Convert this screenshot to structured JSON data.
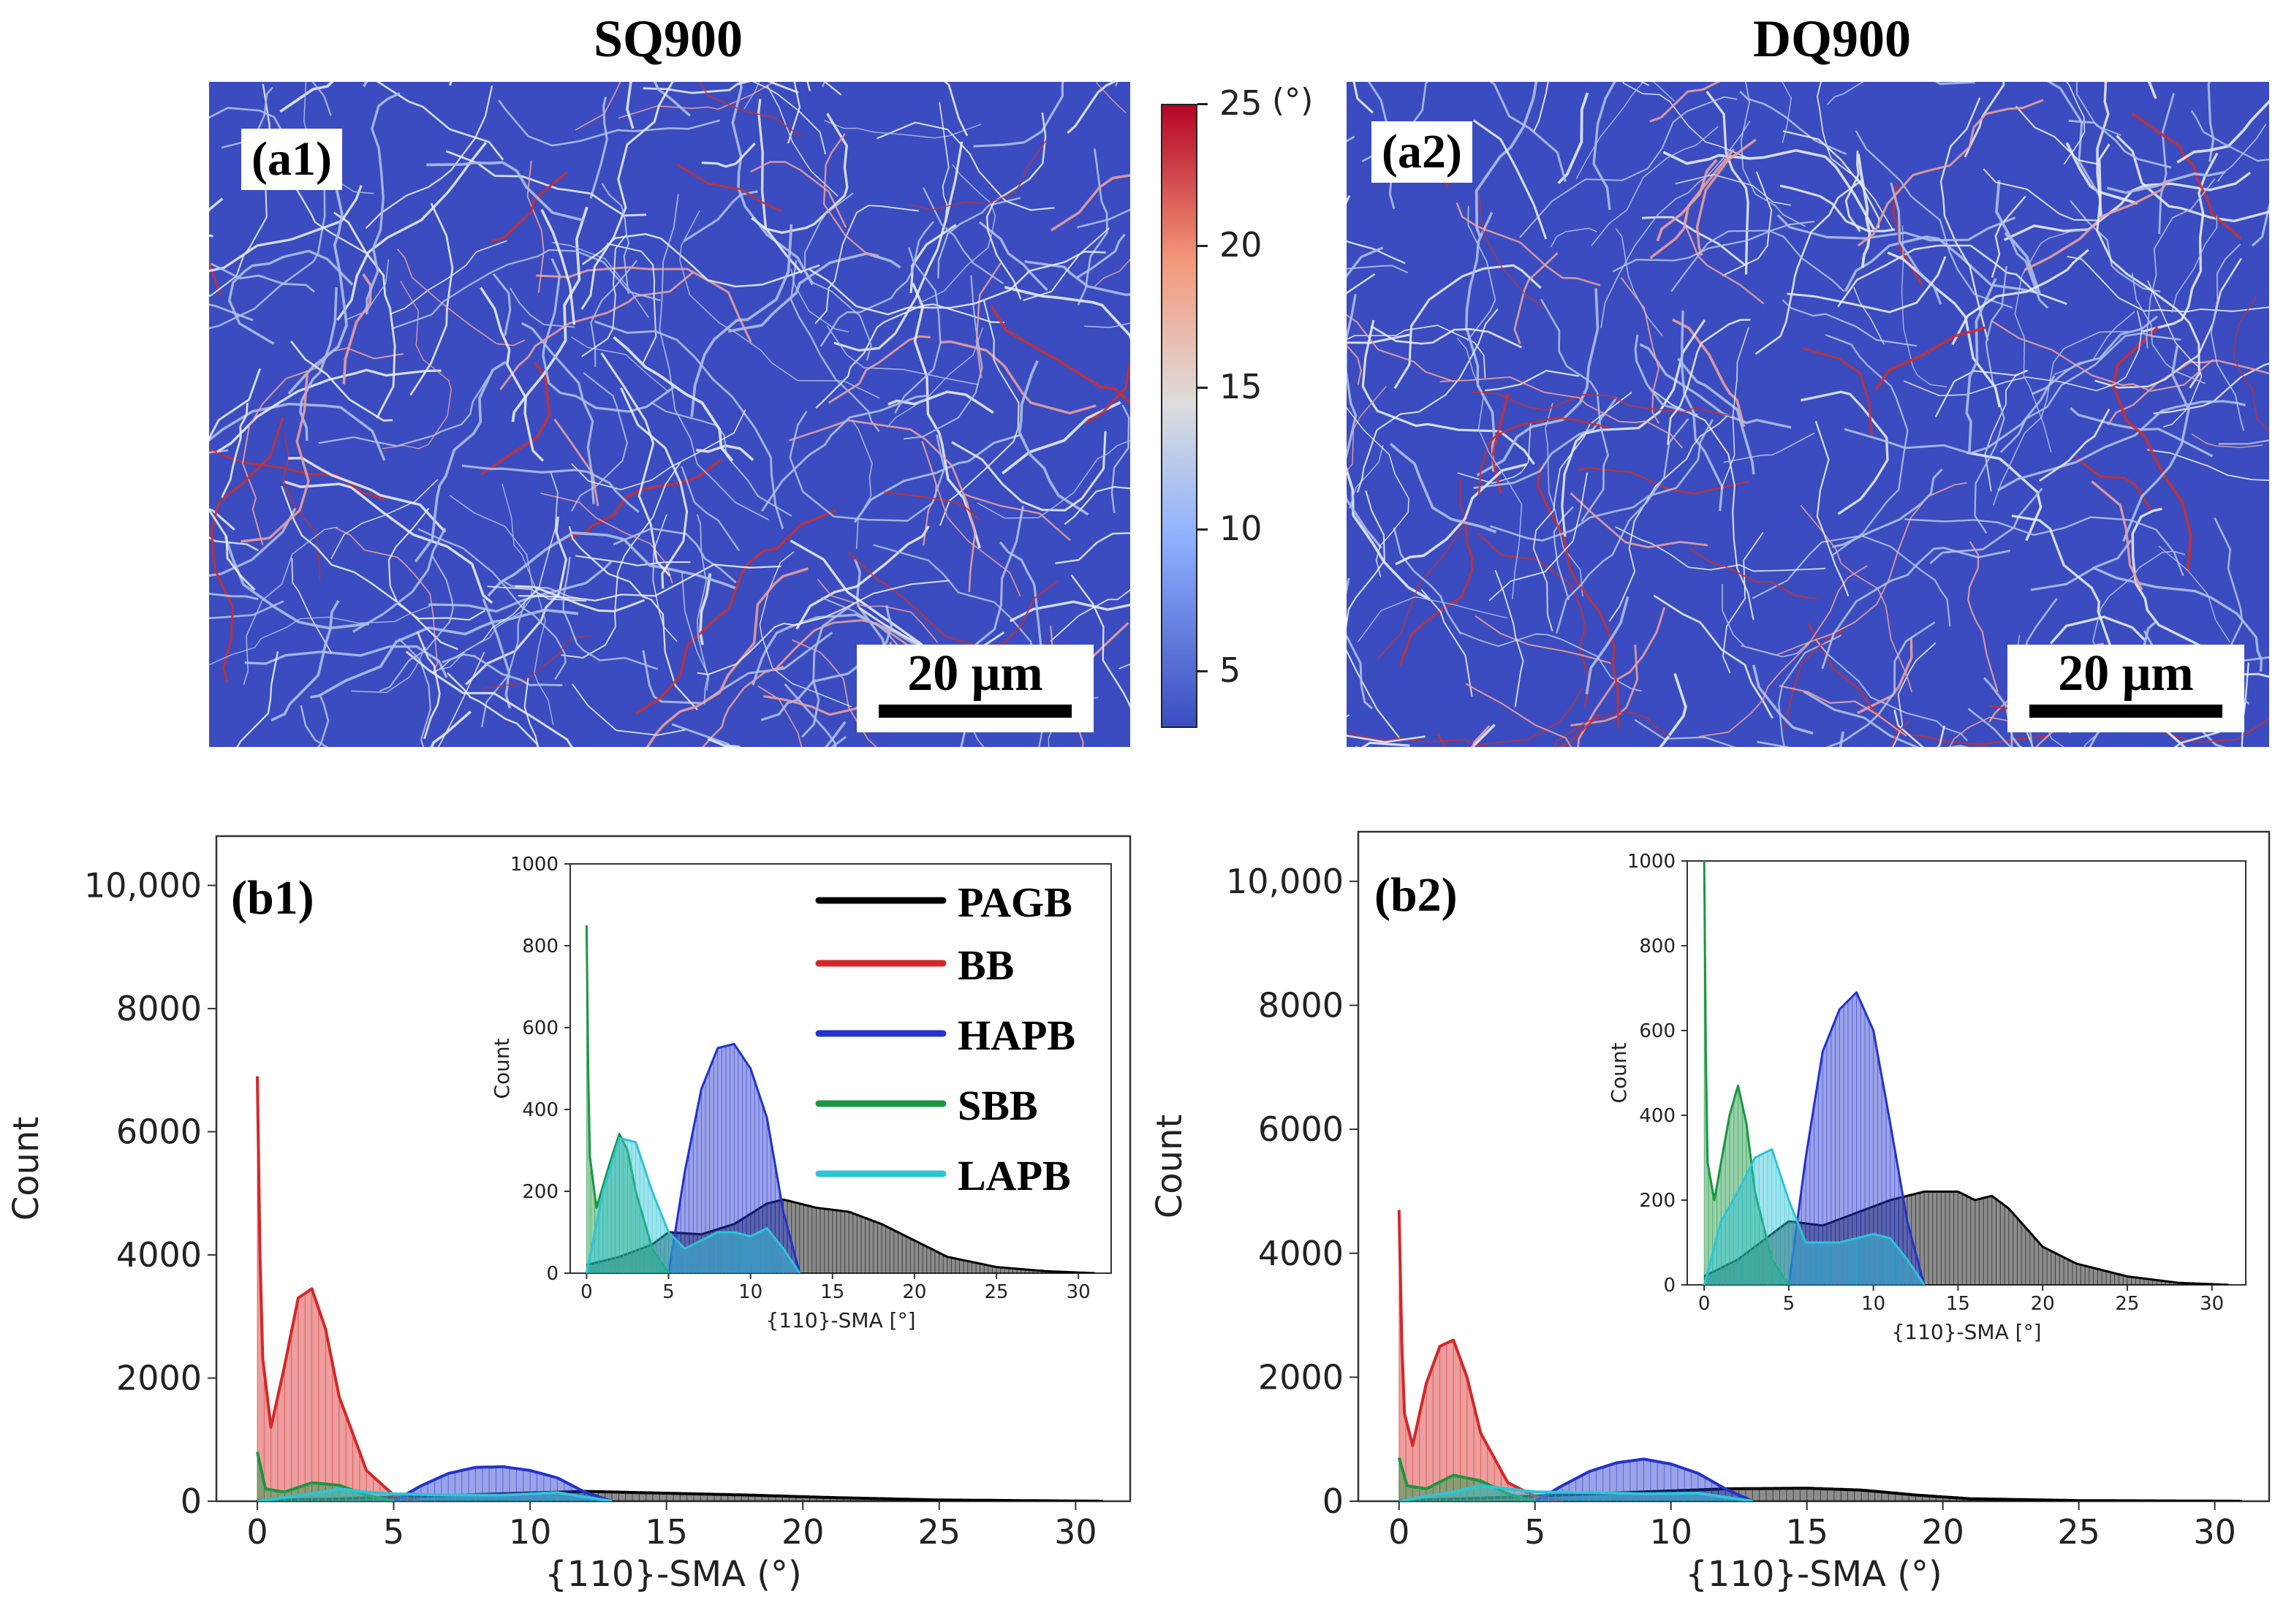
{
  "titles": {
    "left": "SQ900",
    "right": "DQ900"
  },
  "maps": [
    {
      "label": "(a1)",
      "scale": "20 μm"
    },
    {
      "label": "(a2)",
      "scale": "20 μm"
    }
  ],
  "colorbar": {
    "ticks": [
      "25",
      "20",
      "15",
      "10",
      "5"
    ],
    "unit": "(°)",
    "range": [
      3,
      25
    ],
    "colors": {
      "low": "#3b4cc0",
      "mid": "#dddddd",
      "high": "#b40426"
    }
  },
  "chart_data": [
    {
      "type": "area",
      "panel": "(b1)",
      "xlabel": "{110}-SMA (°)",
      "ylabel": "Count",
      "xlim": [
        -1.5,
        32
      ],
      "ylim": [
        0,
        10800
      ],
      "xticks": [
        "0",
        "5",
        "10",
        "15",
        "20",
        "25",
        "30"
      ],
      "yticks": [
        "0",
        "2000",
        "4000",
        "6000",
        "8000",
        "10,000"
      ],
      "series": [
        {
          "name": "PAGB",
          "color": "#000000",
          "x": [
            0,
            3,
            6,
            9,
            12,
            15,
            18,
            21,
            25,
            31
          ],
          "y": [
            10,
            40,
            80,
            120,
            160,
            130,
            100,
            60,
            20,
            0
          ]
        },
        {
          "name": "BB",
          "color": "#d62728",
          "x": [
            0,
            0.15,
            0.5,
            1,
            1.5,
            2,
            2.5,
            3,
            4,
            5,
            6
          ],
          "y": [
            6900,
            2500,
            1200,
            2200,
            3300,
            3450,
            2800,
            1700,
            500,
            100,
            0
          ]
        },
        {
          "name": "HAPB",
          "color": "#2233cc",
          "x": [
            5,
            6,
            7,
            8,
            9,
            10,
            11,
            12,
            13
          ],
          "y": [
            0,
            250,
            450,
            550,
            560,
            500,
            380,
            150,
            0
          ]
        },
        {
          "name": "SBB",
          "color": "#1a9641",
          "x": [
            0,
            0.3,
            1,
            2,
            3,
            4,
            5
          ],
          "y": [
            800,
            200,
            150,
            300,
            260,
            100,
            0
          ]
        },
        {
          "name": "LAPB",
          "color": "#2ec4d6",
          "x": [
            0,
            2,
            3,
            4,
            5,
            7,
            9,
            11,
            13
          ],
          "y": [
            0,
            120,
            200,
            150,
            120,
            100,
            100,
            140,
            0
          ]
        }
      ],
      "inset": {
        "xlabel": "{110}-SMA [°]",
        "ylabel": "Count",
        "xlim": [
          -1,
          32
        ],
        "ylim": [
          0,
          1000
        ],
        "xticks": [
          "0",
          "5",
          "10",
          "15",
          "20",
          "25",
          "30"
        ],
        "yticks": [
          "0",
          "200",
          "400",
          "600",
          "800",
          "1000"
        ],
        "series": [
          {
            "name": "PAGB",
            "color": "#000000",
            "x": [
              0,
              2,
              4,
              5,
              7,
              9,
              11,
              12,
              14,
              16,
              18,
              20,
              22,
              25,
              28,
              31
            ],
            "y": [
              20,
              40,
              70,
              100,
              95,
              120,
              170,
              180,
              160,
              150,
              120,
              80,
              40,
              15,
              5,
              0
            ]
          },
          {
            "name": "HAPB",
            "color": "#2233cc",
            "x": [
              5,
              6,
              7,
              8,
              9,
              10,
              11,
              12,
              13
            ],
            "y": [
              0,
              250,
              450,
              550,
              560,
              500,
              380,
              150,
              0
            ]
          },
          {
            "name": "SBB",
            "color": "#1a9641",
            "x": [
              0,
              0.15,
              0.6,
              1.5,
              2,
              2.5,
              3,
              4,
              5
            ],
            "y": [
              850,
              300,
              160,
              280,
              340,
              300,
              200,
              60,
              0
            ]
          },
          {
            "name": "LAPB",
            "color": "#2ec4d6",
            "x": [
              0,
              1,
              2,
              3,
              4,
              5,
              6,
              8,
              9,
              10,
              11,
              12,
              13
            ],
            "y": [
              0,
              200,
              330,
              320,
              200,
              100,
              60,
              100,
              100,
              90,
              110,
              60,
              0
            ]
          }
        ]
      }
    },
    {
      "type": "area",
      "panel": "(b2)",
      "xlabel": "{110}-SMA (°)",
      "ylabel": "Count",
      "xlim": [
        -1.5,
        32
      ],
      "ylim": [
        0,
        10800
      ],
      "xticks": [
        "0",
        "5",
        "10",
        "15",
        "20",
        "25",
        "30"
      ],
      "yticks": [
        "0",
        "2000",
        "4000",
        "6000",
        "8000",
        "10,000"
      ],
      "series": [
        {
          "name": "PAGB",
          "color": "#000000",
          "x": [
            0,
            3,
            6,
            9,
            12,
            15,
            17,
            19,
            21,
            25,
            31
          ],
          "y": [
            10,
            50,
            100,
            150,
            200,
            210,
            180,
            100,
            40,
            10,
            0
          ]
        },
        {
          "name": "BB",
          "color": "#d62728",
          "x": [
            0,
            0.15,
            0.5,
            1,
            1.5,
            2,
            2.5,
            3,
            4,
            5,
            6
          ],
          "y": [
            4700,
            1500,
            900,
            1900,
            2500,
            2600,
            2000,
            1100,
            300,
            80,
            0
          ]
        },
        {
          "name": "HAPB",
          "color": "#2233cc",
          "x": [
            5,
            6,
            7,
            8,
            9,
            10,
            11,
            12,
            13
          ],
          "y": [
            0,
            250,
            480,
            620,
            680,
            600,
            450,
            200,
            0
          ]
        },
        {
          "name": "SBB",
          "color": "#1a9641",
          "x": [
            0,
            0.3,
            1,
            2,
            3,
            4,
            5
          ],
          "y": [
            700,
            250,
            200,
            420,
            330,
            120,
            0
          ]
        },
        {
          "name": "LAPB",
          "color": "#2ec4d6",
          "x": [
            0,
            2,
            3,
            4,
            5,
            7,
            9,
            11,
            13
          ],
          "y": [
            0,
            150,
            250,
            200,
            150,
            140,
            120,
            130,
            0
          ]
        }
      ],
      "inset": {
        "xlabel": "{110}-SMA [°]",
        "ylabel": "Count",
        "xlim": [
          -1,
          32
        ],
        "ylim": [
          0,
          1000
        ],
        "xticks": [
          "0",
          "5",
          "10",
          "15",
          "20",
          "25",
          "30"
        ],
        "yticks": [
          "0",
          "200",
          "400",
          "600",
          "800",
          "1000"
        ],
        "series": [
          {
            "name": "PAGB",
            "color": "#000000",
            "x": [
              0,
              2,
              4,
              5,
              7,
              9,
              11,
              13,
              15,
              16,
              17,
              18,
              20,
              22,
              25,
              28,
              31
            ],
            "y": [
              20,
              60,
              120,
              150,
              140,
              170,
              200,
              220,
              220,
              200,
              210,
              180,
              90,
              50,
              20,
              5,
              0
            ]
          },
          {
            "name": "HAPB",
            "color": "#2233cc",
            "x": [
              5,
              6,
              7,
              8,
              9,
              10,
              11,
              12,
              13
            ],
            "y": [
              0,
              300,
              550,
              650,
              690,
              600,
              380,
              150,
              0
            ]
          },
          {
            "name": "SBB",
            "color": "#1a9641",
            "x": [
              0,
              0.15,
              0.6,
              1.5,
              2,
              2.5,
              3,
              4,
              5
            ],
            "y": [
              1000,
              300,
              200,
              400,
              470,
              380,
              220,
              60,
              0
            ]
          },
          {
            "name": "LAPB",
            "color": "#2ec4d6",
            "x": [
              0,
              1,
              2,
              3,
              4,
              5,
              6,
              8,
              9,
              10,
              11,
              12,
              13
            ],
            "y": [
              0,
              150,
              220,
              300,
              320,
              200,
              100,
              100,
              110,
              120,
              110,
              60,
              0
            ]
          }
        ]
      }
    }
  ],
  "legend": [
    "PAGB",
    "BB",
    "HAPB",
    "SBB",
    "LAPB"
  ]
}
